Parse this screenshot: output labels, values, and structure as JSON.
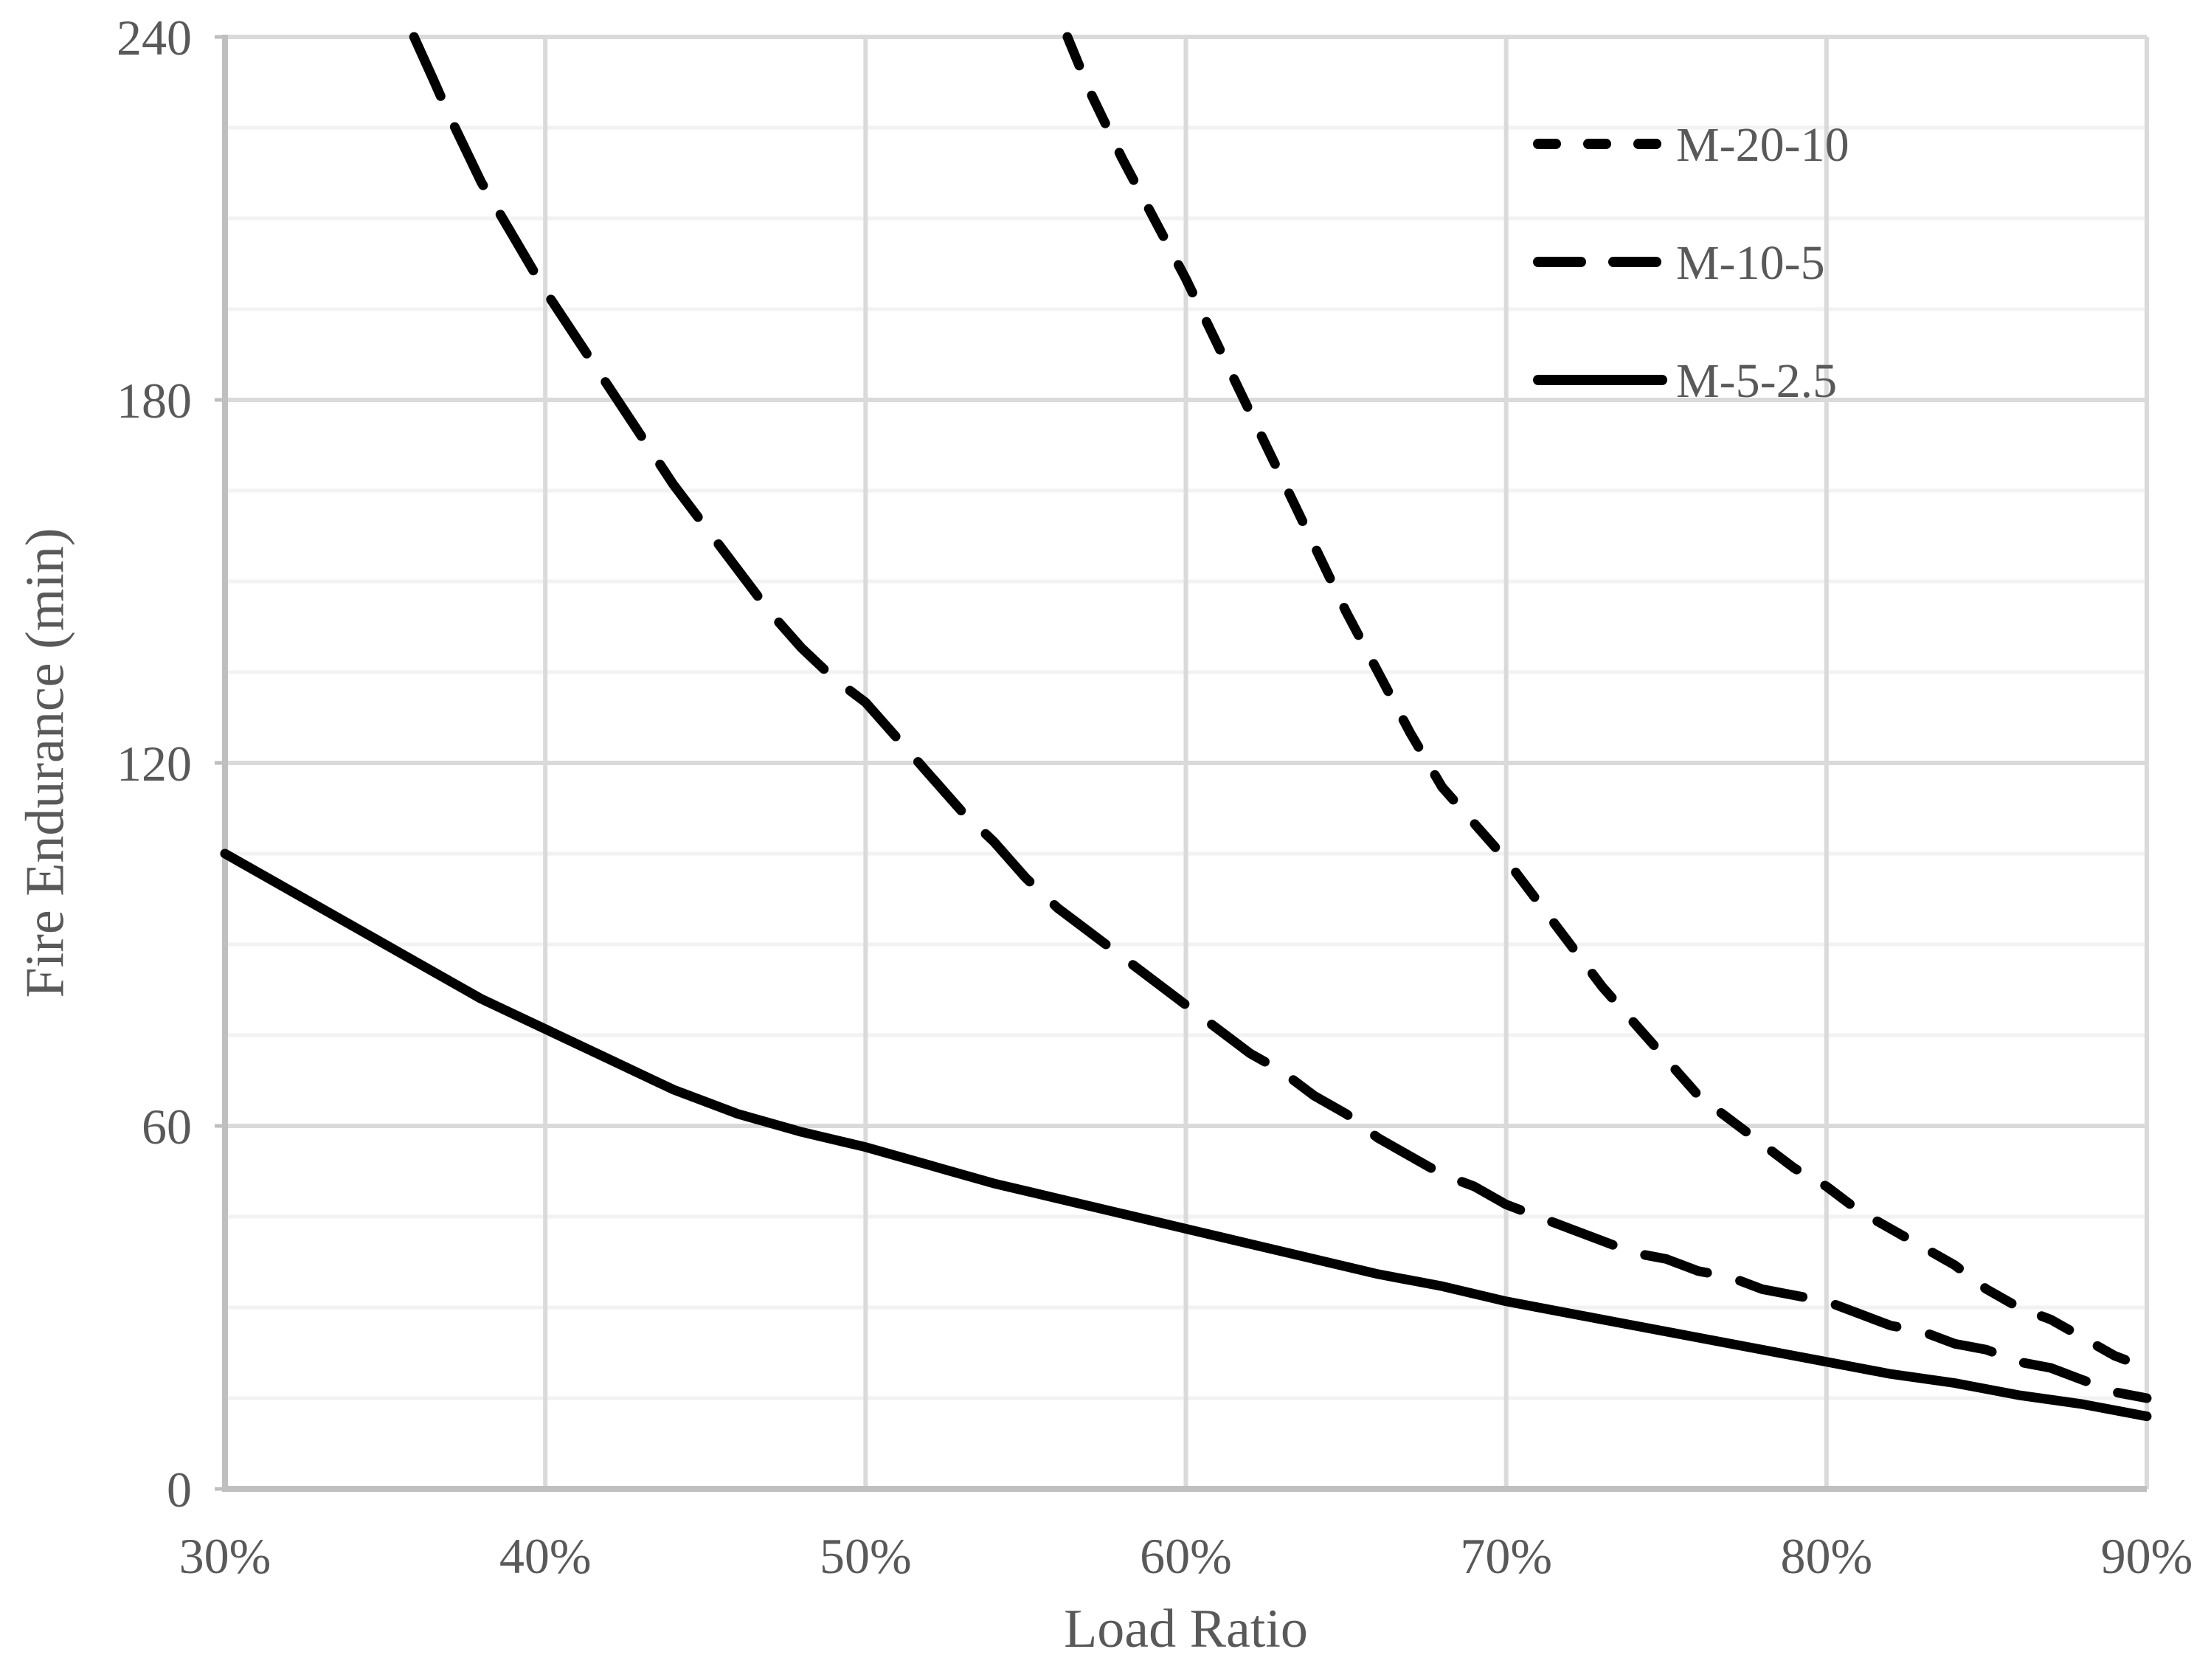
{
  "chart_data": {
    "type": "line",
    "title": "",
    "xlabel": "Load Ratio",
    "ylabel": "Fire Endurance (min)",
    "background_color": "#FFFFFF",
    "grid": "on",
    "x_axis": {
      "min": 30,
      "max": 90,
      "major_step": 10,
      "tick_values": [
        30,
        40,
        50,
        60,
        70,
        80,
        90
      ],
      "tick_labels": [
        "30%",
        "40%",
        "50%",
        "60%",
        "70%",
        "80%",
        "90%"
      ]
    },
    "y_axis": {
      "min": 0,
      "max": 240,
      "major_step": 60,
      "minor_step": 15,
      "tick_values": [
        0,
        60,
        120,
        180,
        240
      ],
      "tick_labels": [
        "0",
        "60",
        "120",
        "180",
        "240"
      ]
    },
    "legend": {
      "position": "top-right",
      "entries": [
        {
          "label": "M-20-10",
          "line_style": "short-dash"
        },
        {
          "label": "M-10-5",
          "line_style": "long-dash"
        },
        {
          "label": "M-5-2.5",
          "line_style": "solid"
        }
      ]
    },
    "series": [
      {
        "name": "M-20-10",
        "line_style": "short-dash",
        "color": "#000000",
        "points": [
          [
            56.3,
            240
          ],
          [
            57,
            231
          ],
          [
            58,
            220
          ],
          [
            59,
            210
          ],
          [
            60,
            200
          ],
          [
            61,
            189
          ],
          [
            62,
            178
          ],
          [
            63,
            167
          ],
          [
            64,
            156
          ],
          [
            65,
            145
          ],
          [
            66,
            135
          ],
          [
            67,
            125
          ],
          [
            68,
            116
          ],
          [
            69,
            110
          ],
          [
            70,
            104
          ],
          [
            71,
            97
          ],
          [
            72,
            90
          ],
          [
            73,
            83
          ],
          [
            74,
            77
          ],
          [
            75,
            71
          ],
          [
            76,
            65
          ],
          [
            77,
            61
          ],
          [
            78,
            57
          ],
          [
            79,
            53
          ],
          [
            80,
            50
          ],
          [
            81,
            46
          ],
          [
            82,
            43
          ],
          [
            83,
            40
          ],
          [
            84,
            37
          ],
          [
            85,
            33
          ],
          [
            86,
            30
          ],
          [
            87,
            28
          ],
          [
            88,
            25
          ],
          [
            89,
            22
          ],
          [
            90,
            20
          ]
        ]
      },
      {
        "name": "M-10-5",
        "line_style": "long-dash",
        "color": "#000000",
        "points": [
          [
            35.9,
            240
          ],
          [
            36.5,
            233
          ],
          [
            37,
            227
          ],
          [
            38,
            216
          ],
          [
            39,
            207
          ],
          [
            40,
            198
          ],
          [
            41,
            190
          ],
          [
            42,
            182
          ],
          [
            43,
            174
          ],
          [
            44,
            166
          ],
          [
            45,
            159
          ],
          [
            46,
            152
          ],
          [
            47,
            145
          ],
          [
            48,
            139
          ],
          [
            49,
            134
          ],
          [
            50,
            130
          ],
          [
            51,
            124
          ],
          [
            52,
            118
          ],
          [
            53,
            112
          ],
          [
            54,
            107
          ],
          [
            55,
            101
          ],
          [
            56,
            96
          ],
          [
            57,
            92
          ],
          [
            58,
            88
          ],
          [
            59,
            84
          ],
          [
            60,
            80
          ],
          [
            61,
            76
          ],
          [
            62,
            72
          ],
          [
            63,
            69
          ],
          [
            64,
            65
          ],
          [
            65,
            62
          ],
          [
            66,
            58
          ],
          [
            67,
            55
          ],
          [
            68,
            52
          ],
          [
            69,
            50
          ],
          [
            70,
            47
          ],
          [
            71,
            45
          ],
          [
            72,
            43
          ],
          [
            73,
            41
          ],
          [
            74,
            39
          ],
          [
            75,
            38
          ],
          [
            76,
            36
          ],
          [
            77,
            35
          ],
          [
            78,
            33
          ],
          [
            79,
            32
          ],
          [
            80,
            31
          ],
          [
            81,
            29
          ],
          [
            82,
            27
          ],
          [
            83,
            26
          ],
          [
            84,
            24
          ],
          [
            85,
            23
          ],
          [
            86,
            21
          ],
          [
            87,
            20
          ],
          [
            88,
            18
          ],
          [
            89,
            16
          ],
          [
            90,
            15
          ]
        ]
      },
      {
        "name": "M-5-2.5",
        "line_style": "solid",
        "color": "#000000",
        "points": [
          [
            30,
            105
          ],
          [
            32,
            99
          ],
          [
            34,
            93
          ],
          [
            36,
            87
          ],
          [
            38,
            81
          ],
          [
            40,
            76
          ],
          [
            42,
            71
          ],
          [
            44,
            66
          ],
          [
            45,
            64
          ],
          [
            46,
            62
          ],
          [
            48,
            59
          ],
          [
            50,
            56.5
          ],
          [
            52,
            53.5
          ],
          [
            54,
            50.5
          ],
          [
            56,
            48
          ],
          [
            58,
            45.5
          ],
          [
            60,
            43
          ],
          [
            62,
            40.5
          ],
          [
            64,
            38
          ],
          [
            66,
            35.5
          ],
          [
            68,
            33.5
          ],
          [
            70,
            31
          ],
          [
            72,
            29
          ],
          [
            74,
            27
          ],
          [
            76,
            25
          ],
          [
            78,
            23
          ],
          [
            80,
            21
          ],
          [
            82,
            19
          ],
          [
            84,
            17.5
          ],
          [
            86,
            15.5
          ],
          [
            88,
            14
          ],
          [
            90,
            12
          ]
        ]
      }
    ],
    "colors": {
      "line": "#000000",
      "text": "#595959",
      "major_grid": "#DADADA",
      "minor_grid": "#F2F2F2",
      "axis_line": "#BFBFBF"
    }
  }
}
